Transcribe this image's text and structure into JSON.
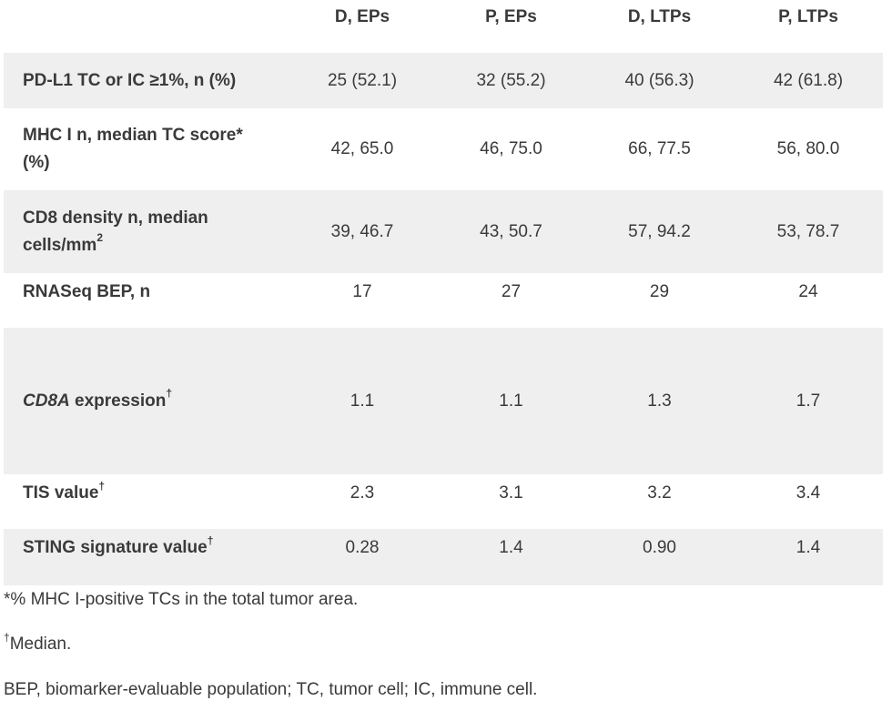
{
  "table": {
    "columns": [
      "",
      "D, EPs",
      "P, EPs",
      "D, LTPs",
      "P, LTPs"
    ],
    "rows": [
      {
        "label": "PD-L1 TC or IC ≥1%, n (%)",
        "values": [
          "25 (52.1)",
          "32 (55.2)",
          "40 (56.3)",
          "42 (61.8)"
        ]
      },
      {
        "label_line1": "MHC I n, median TC score*",
        "label_line2": "(%)",
        "values": [
          "42, 65.0",
          "46, 75.0",
          "66, 77.5",
          "56, 80.0"
        ]
      },
      {
        "label_line1": "CD8 density n, median",
        "label_line2": "cells/mm",
        "label_sup": "2",
        "values": [
          "39, 46.7",
          "43, 50.7",
          "57, 94.2",
          "53, 78.7"
        ]
      },
      {
        "label": "RNASeq BEP, n",
        "values": [
          "17",
          "27",
          "29",
          "24"
        ]
      },
      {
        "label_italic": "CD8A",
        "label_rest": " expression",
        "label_sup": "†",
        "values": [
          "1.1",
          "1.1",
          "1.3",
          "1.7"
        ]
      },
      {
        "label": "TIS value",
        "label_sup": "†",
        "values": [
          "2.3",
          "3.1",
          "3.2",
          "3.4"
        ]
      },
      {
        "label": "STING signature value",
        "label_sup": "†",
        "values": [
          "0.28",
          "1.4",
          "0.90",
          "1.4"
        ]
      }
    ]
  },
  "footnotes": {
    "fn1": "*% MHC I-positive TCs in the total tumor area.",
    "fn2_sup": "†",
    "fn2": "Median.",
    "fn3": "BEP, biomarker-evaluable population; TC, tumor cell; IC, immune cell."
  }
}
